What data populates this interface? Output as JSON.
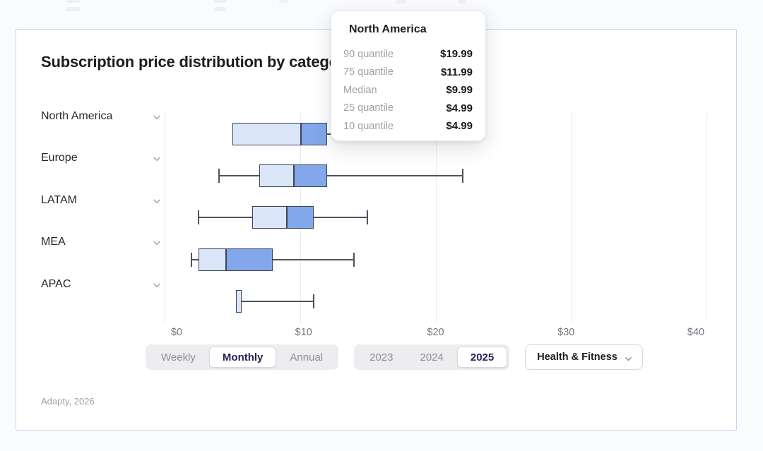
{
  "header": {
    "title": "Subscription price distribution by category"
  },
  "tooltip": {
    "title": "North America",
    "rows": [
      {
        "label": "90 quantile",
        "value": "$19.99"
      },
      {
        "label": "75 quantile",
        "value": "$11.99"
      },
      {
        "label": "Median",
        "value": "$9.99"
      },
      {
        "label": "25 quantile",
        "value": "$4.99"
      },
      {
        "label": "10 quantile",
        "value": "$4.99"
      }
    ]
  },
  "chart_data": {
    "type": "boxplot-horizontal",
    "title": "Subscription price distribution by category",
    "x_axis": {
      "min": 0,
      "max": 40,
      "tick_labels": [
        "$0",
        "$10",
        "$20",
        "$30",
        "$40"
      ],
      "tick_values": [
        0,
        10,
        20,
        30,
        40
      ],
      "grid": true
    },
    "rows": [
      {
        "label": "North America",
        "q10": 4.99,
        "q25": 4.99,
        "median": 9.99,
        "q75": 11.99,
        "q90": 19.99
      },
      {
        "label": "Europe",
        "q10": 3.99,
        "q25": 6.99,
        "median": 9.49,
        "q75": 11.99,
        "q90": 21.99
      },
      {
        "label": "LATAM",
        "q10": 2.49,
        "q25": 6.49,
        "median": 8.99,
        "q75": 10.99,
        "q90": 14.99
      },
      {
        "label": "MEA",
        "q10": 1.99,
        "q25": 2.49,
        "median": 4.49,
        "q75": 7.99,
        "q90": 13.99
      },
      {
        "label": "APAC",
        "q10": 5.49,
        "q25": 5.49,
        "median": 5.49,
        "q75": 5.49,
        "q90": 10.99
      }
    ],
    "colors": {
      "box_low": "#dae5f7",
      "box_high": "#82a7ea",
      "border": "#3d4553",
      "whisker": "#4d545e"
    },
    "legend": null
  },
  "controls": {
    "period": {
      "options": [
        "Weekly",
        "Monthly",
        "Annual"
      ],
      "selected": "Monthly"
    },
    "year": {
      "options": [
        "2023",
        "2024",
        "2025"
      ],
      "selected": "2025"
    },
    "category": {
      "value": "Health & Fitness"
    }
  },
  "footnote": "Adapty, 2026"
}
